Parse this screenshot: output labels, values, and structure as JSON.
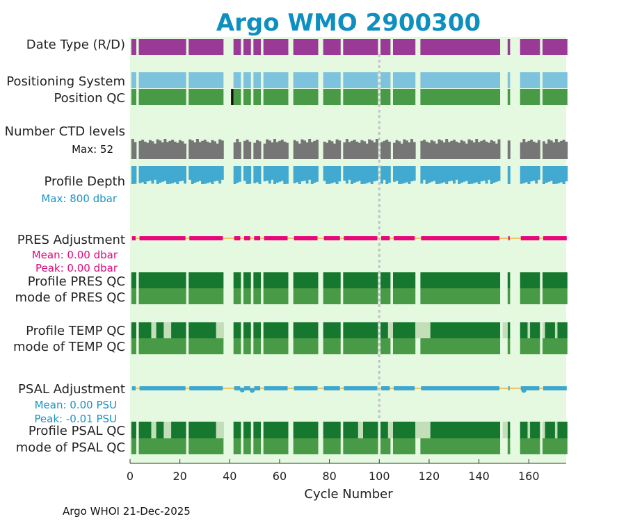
{
  "chart_data": {
    "type": "timeline",
    "title": "Argo WMO 2900300",
    "xlabel": "Cycle Number",
    "xlim": [
      0,
      175
    ],
    "xticks": [
      "0",
      "20",
      "40",
      "60",
      "80",
      "100",
      "120",
      "140",
      "160"
    ],
    "marker_cycle": 100,
    "cycles_present": [
      [
        1,
        2
      ],
      [
        4,
        22
      ],
      [
        24,
        37
      ],
      [
        42,
        44
      ],
      [
        46,
        48
      ],
      [
        50,
        52
      ],
      [
        54,
        63
      ],
      [
        66,
        75
      ],
      [
        78,
        84
      ],
      [
        86,
        99
      ],
      [
        101,
        104
      ],
      [
        106,
        114
      ],
      [
        117,
        148
      ],
      [
        152,
        152
      ],
      [
        157,
        164
      ],
      [
        166,
        175
      ]
    ],
    "rows": {
      "data_type": {
        "label": "Date Type (R/D)",
        "color": "#9b3a96"
      },
      "positioning_system": {
        "label": "Positioning System",
        "color": "#7ec3dd"
      },
      "position_qc": {
        "label": "Position QC",
        "color": "#489a47",
        "flag_color": "#111111",
        "flag_cycles": [
          41
        ]
      },
      "ctd_levels": {
        "label": "Number CTD levels",
        "max_text": "Max: 52",
        "max_value": 52,
        "color": "#767676"
      },
      "profile_depth": {
        "label": "Profile Depth",
        "max_text": "Max:  800 dbar",
        "max_value": 800,
        "color": "#42a9d0"
      },
      "pres_adjustment": {
        "label": "PRES Adjustment",
        "mean_text": "Mean: 0.00 dbar",
        "peak_text": "Peak: 0.00 dbar",
        "color": "#e6077c"
      },
      "profile_pres_qc": {
        "label": "Profile PRES QC",
        "color": "#15782e"
      },
      "mode_pres_qc": {
        "label": "mode of PRES QC",
        "color": "#489a47"
      },
      "profile_temp_qc": {
        "label": "Profile TEMP QC",
        "color": "#15782e",
        "light_color": "#c2dfb9",
        "light_cycles": [
          [
            9,
            10
          ],
          [
            14,
            16
          ],
          [
            35,
            37
          ],
          [
            104,
            105
          ],
          [
            115,
            120
          ],
          [
            150,
            151
          ],
          [
            160,
            160
          ],
          [
            166,
            166
          ],
          [
            171,
            171
          ]
        ]
      },
      "mode_temp_qc": {
        "label": "mode of TEMP QC",
        "color": "#489a47"
      },
      "psal_adjustment": {
        "label": "PSAL Adjustment",
        "mean_text": "Mean: 0.00 PSU",
        "peak_text": "Peak: -0.01 PSU",
        "color": "#3ea7cf"
      },
      "profile_psal_qc": {
        "label": "Profile PSAL QC",
        "color": "#15782e",
        "light_color": "#c2dfb9",
        "light_cycles": [
          [
            9,
            10
          ],
          [
            14,
            16
          ],
          [
            35,
            37
          ],
          [
            92,
            93
          ],
          [
            104,
            105
          ],
          [
            115,
            120
          ],
          [
            150,
            151
          ],
          [
            160,
            160
          ],
          [
            166,
            166
          ],
          [
            171,
            171
          ]
        ]
      },
      "mode_psal_qc": {
        "label": "mode of PSAL QC",
        "color": "#489a47"
      }
    },
    "ctd_pattern": [
      52,
      44,
      47,
      50,
      45,
      42,
      49,
      46,
      40,
      51,
      48,
      43
    ],
    "depth_pattern": [
      800,
      790,
      760,
      720,
      800,
      680,
      650,
      780,
      610,
      800,
      740,
      700,
      660
    ],
    "psal_dips": [
      {
        "cycle": 45,
        "value": -0.008
      },
      {
        "cycle": 49,
        "value": -0.01
      },
      {
        "cycle": 158,
        "value": -0.01
      }
    ]
  },
  "footer": {
    "text": "Argo WHOI 21-Dec-2025"
  }
}
